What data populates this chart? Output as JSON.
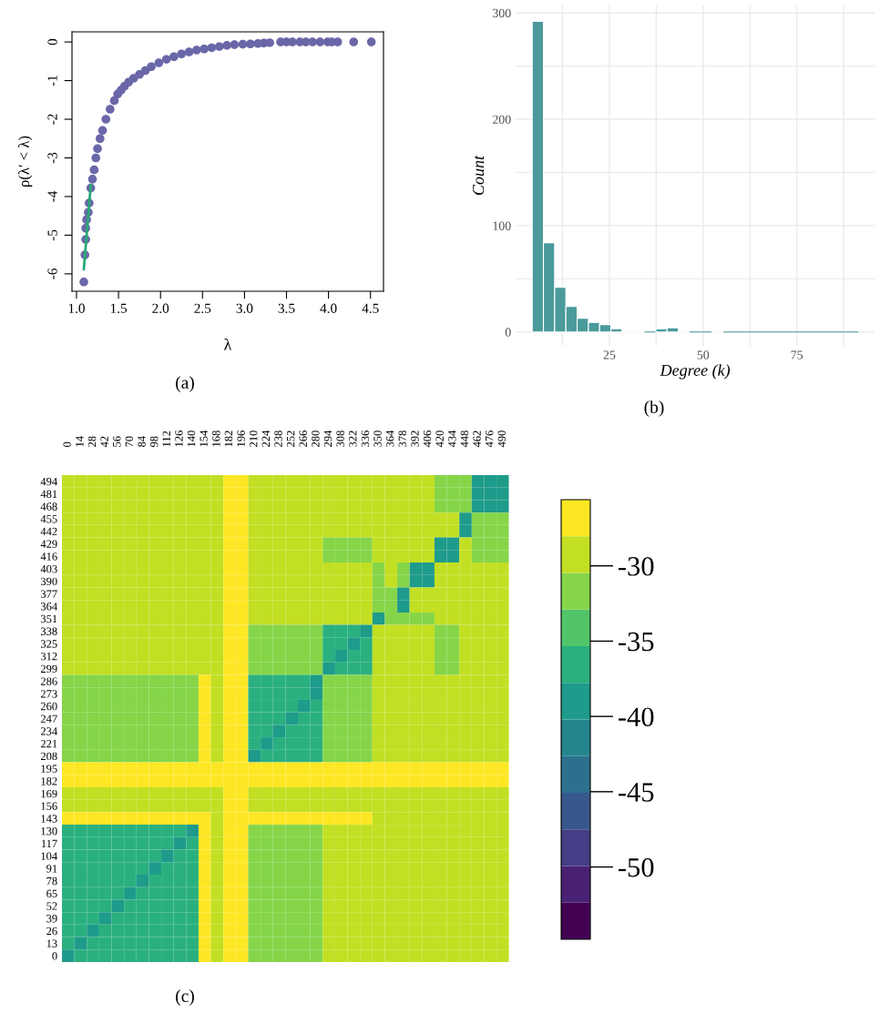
{
  "chart_data": [
    {
      "type": "scatter",
      "xlabel": "λ",
      "ylabel": "ρ(λ′ < λ)",
      "annotations": [
        "(a)"
      ],
      "xlim": [
        0.946,
        4.655
      ],
      "ylim": [
        -6.45,
        0.26
      ],
      "xticks": [
        {
          "value": 1,
          "label": "1.0"
        },
        1.5,
        {
          "value": 2,
          "label": "2.0"
        },
        2.5,
        {
          "value": 3,
          "label": "3.0"
        },
        3.5,
        {
          "value": 4,
          "label": "4.0"
        },
        4.5
      ],
      "yticks": [
        0,
        -1,
        -2,
        -3,
        -4,
        -5,
        -6
      ],
      "grid": false,
      "series": [
        {
          "color": "#6a67a8",
          "marker": "circle",
          "x": [
            1.087,
            1.1,
            1.11,
            1.11,
            1.12,
            1.14,
            1.15,
            1.17,
            1.19,
            1.21,
            1.23,
            1.25,
            1.28,
            1.31,
            1.35,
            1.4,
            1.45,
            1.49,
            1.53,
            1.57,
            1.62,
            1.68,
            1.75,
            1.82,
            1.89,
            1.98,
            2.07,
            2.16,
            2.25,
            2.34,
            2.43,
            2.52,
            2.61,
            2.7,
            2.79,
            2.88,
            2.98,
            3.07,
            3.16,
            3.23,
            3.3,
            3.43,
            3.5,
            3.57,
            3.66,
            3.73,
            3.81,
            3.9,
            3.99,
            4.04,
            4.11,
            4.3,
            4.51
          ],
          "values": [
            -6.21,
            -5.51,
            -5.11,
            -4.82,
            -4.6,
            -4.41,
            -4.17,
            -3.78,
            -3.55,
            -3.31,
            -3.0,
            -2.76,
            -2.5,
            -2.29,
            -2.0,
            -1.74,
            -1.52,
            -1.35,
            -1.25,
            -1.15,
            -1.04,
            -0.94,
            -0.84,
            -0.74,
            -0.64,
            -0.54,
            -0.45,
            -0.38,
            -0.31,
            -0.26,
            -0.21,
            -0.18,
            -0.15,
            -0.12,
            -0.09,
            -0.07,
            -0.06,
            -0.05,
            -0.04,
            -0.03,
            -0.02,
            0,
            0,
            0,
            0,
            0,
            0,
            0,
            0,
            0,
            0,
            0,
            0
          ]
        },
        {
          "type": "line",
          "color": "#2aa876",
          "x": [
            1.087,
            1.17
          ],
          "values": [
            -5.88,
            -3.7
          ]
        }
      ]
    },
    {
      "type": "histogram",
      "xlabel": "Degree (k)",
      "ylabel": "Count",
      "annotations": [
        "(b)"
      ],
      "color": "#4a9a9c",
      "grid": true,
      "bins": [
        4.4,
        7.4,
        10.4,
        13.4,
        16.4,
        19.4,
        22.4,
        25.4,
        28.4,
        31.4,
        34.4,
        37.4,
        40.4,
        43.4,
        46.4,
        49.4,
        52.4,
        55.4,
        58.4,
        61.4,
        64.4,
        67.4,
        70.4,
        73.4,
        76.4,
        79.4,
        82.4,
        85.4,
        88.4,
        91.4
      ],
      "values": [
        292,
        84,
        42,
        24,
        13,
        9,
        7,
        3,
        1,
        1,
        0,
        3,
        4,
        1,
        0,
        0,
        1,
        0,
        0,
        0,
        0,
        0,
        0,
        0,
        0,
        0,
        0,
        0,
        0
      ],
      "xlim": [
        0,
        95.8
      ],
      "ylim": [
        -13,
        307
      ],
      "xticks": [
        {
          "value": 12.5,
          "label": null
        },
        25,
        {
          "value": 37.5,
          "label": null
        },
        50,
        {
          "value": 62.5,
          "label": null
        },
        75,
        {
          "value": 87.5,
          "label": null
        }
      ],
      "yticks": [
        0,
        {
          "value": 50,
          "label": null
        },
        100,
        {
          "value": 150,
          "label": null
        },
        200,
        {
          "value": 250,
          "label": null
        },
        300
      ]
    },
    {
      "type": "heatmap",
      "annotations": [
        "(c)"
      ],
      "clim": [
        -54.8,
        -25.6
      ],
      "cticks": [
        {
          "value": -30,
          "label": "-30"
        },
        {
          "value": -35,
          "label": "-35"
        },
        {
          "value": -40,
          "label": "-40"
        },
        {
          "value": -45,
          "label": "-45"
        },
        {
          "value": -50,
          "label": "-50"
        }
      ],
      "categories": [
        "0",
        "14",
        "28",
        "42",
        "56",
        "70",
        "84",
        "98",
        "112",
        "126",
        "140",
        "154",
        "168",
        "182",
        "196",
        "210",
        "224",
        "238",
        "252",
        "266",
        "280",
        "294",
        "308",
        "322",
        "336",
        "350",
        "364",
        "378",
        "392",
        "406",
        "420",
        "434",
        "448",
        "462",
        "476",
        "490"
      ],
      "y_categories": [
        "494",
        "481",
        "468",
        "455",
        "442",
        "429",
        "416",
        "403",
        "390",
        "377",
        "364",
        "351",
        "338",
        "325",
        "312",
        "299",
        "286",
        "273",
        "260",
        "247",
        "234",
        "221",
        "208",
        "195",
        "182",
        "169",
        "156",
        "143",
        "130",
        "117",
        "104",
        "91",
        "78",
        "65",
        "52",
        "39",
        "26",
        "13",
        "0"
      ],
      "cells": [
        [
          -29,
          -29,
          -29,
          -29,
          -29,
          -29,
          -29,
          -29,
          -29,
          -29,
          -29,
          -29,
          -29,
          -27,
          -27,
          -29,
          -29,
          -29,
          -29,
          -29,
          -29,
          -29,
          -29,
          -29,
          -29,
          -29,
          -29,
          -29,
          -29,
          -29,
          -31.5,
          -31.5,
          -31.5,
          -38.5,
          -38.5,
          -38.5
        ],
        [
          -29,
          -29,
          -29,
          -29,
          -29,
          -29,
          -29,
          -29,
          -29,
          -29,
          -29,
          -29,
          -29,
          -27,
          -27,
          -29,
          -29,
          -29,
          -29,
          -29,
          -29,
          -29,
          -29,
          -29,
          -29,
          -29,
          -29,
          -29,
          -29,
          -29,
          -31.5,
          -31.5,
          -31.5,
          -38.5,
          -38.5,
          -38.5
        ],
        [
          -29,
          -29,
          -29,
          -29,
          -29,
          -29,
          -29,
          -29,
          -29,
          -29,
          -29,
          -29,
          -29,
          -27,
          -27,
          -29,
          -29,
          -29,
          -29,
          -29,
          -29,
          -29,
          -29,
          -29,
          -29,
          -29,
          -29,
          -29,
          -29,
          -29,
          -31.5,
          -31.5,
          -31.5,
          -38.5,
          -38.5,
          -38.5
        ],
        [
          -29,
          -29,
          -29,
          -29,
          -29,
          -29,
          -29,
          -29,
          -29,
          -29,
          -29,
          -29,
          -29,
          -27,
          -27,
          -29,
          -29,
          -29,
          -29,
          -29,
          -29,
          -29,
          -29,
          -29,
          -29,
          -29,
          -29,
          -29,
          -29,
          -29,
          -29,
          -29,
          -38.5,
          -31.5,
          -31.5,
          -31.5
        ],
        [
          -29,
          -29,
          -29,
          -29,
          -29,
          -29,
          -29,
          -29,
          -29,
          -29,
          -29,
          -29,
          -29,
          -27,
          -27,
          -29,
          -29,
          -29,
          -29,
          -29,
          -29,
          -29,
          -29,
          -29,
          -29,
          -29,
          -29,
          -29,
          -29,
          -29,
          -29,
          -29,
          -38.5,
          -31.5,
          -31.5,
          -31.5
        ],
        [
          -29,
          -29,
          -29,
          -29,
          -29,
          -29,
          -29,
          -29,
          -29,
          -29,
          -29,
          -29,
          -29,
          -27,
          -27,
          -29,
          -29,
          -29,
          -29,
          -29,
          -29,
          -31.5,
          -31.5,
          -31.5,
          -31.5,
          -29,
          -29,
          -29,
          -29,
          -29,
          -38.5,
          -38.5,
          -29,
          -31.5,
          -31.5,
          -31.5
        ],
        [
          -29,
          -29,
          -29,
          -29,
          -29,
          -29,
          -29,
          -29,
          -29,
          -29,
          -29,
          -29,
          -29,
          -27,
          -27,
          -29,
          -29,
          -29,
          -29,
          -29,
          -29,
          -31.5,
          -31.5,
          -31.5,
          -31.5,
          -29,
          -29,
          -29,
          -29,
          -29,
          -38.5,
          -38.5,
          -29,
          -31.5,
          -31.5,
          -31.5
        ],
        [
          -29,
          -29,
          -29,
          -29,
          -29,
          -29,
          -29,
          -29,
          -29,
          -29,
          -29,
          -29,
          -29,
          -27,
          -27,
          -29,
          -29,
          -29,
          -29,
          -29,
          -29,
          -29,
          -29,
          -29,
          -29,
          -31.5,
          -29,
          -31.5,
          -38.5,
          -38.5,
          -29,
          -29,
          -29,
          -29,
          -29,
          -29
        ],
        [
          -29,
          -29,
          -29,
          -29,
          -29,
          -29,
          -29,
          -29,
          -29,
          -29,
          -29,
          -29,
          -29,
          -27,
          -27,
          -29,
          -29,
          -29,
          -29,
          -29,
          -29,
          -29,
          -29,
          -29,
          -29,
          -31.5,
          -29,
          -31.5,
          -38.5,
          -38.5,
          -29,
          -29,
          -29,
          -29,
          -29,
          -29
        ],
        [
          -29,
          -29,
          -29,
          -29,
          -29,
          -29,
          -29,
          -29,
          -29,
          -29,
          -29,
          -29,
          -29,
          -27,
          -27,
          -29,
          -29,
          -29,
          -29,
          -29,
          -29,
          -29,
          -29,
          -29,
          -29,
          -31.5,
          -31.5,
          -38.5,
          -29,
          -29,
          -29,
          -29,
          -29,
          -29,
          -29,
          -29
        ],
        [
          -29,
          -29,
          -29,
          -29,
          -29,
          -29,
          -29,
          -29,
          -29,
          -29,
          -29,
          -29,
          -29,
          -27,
          -27,
          -29,
          -29,
          -29,
          -29,
          -29,
          -29,
          -29,
          -29,
          -29,
          -29,
          -31.5,
          -31.5,
          -38.5,
          -29,
          -29,
          -29,
          -29,
          -29,
          -29,
          -29,
          -29
        ],
        [
          -29,
          -29,
          -29,
          -29,
          -29,
          -29,
          -29,
          -29,
          -29,
          -29,
          -29,
          -29,
          -29,
          -27,
          -27,
          -29,
          -29,
          -29,
          -29,
          -29,
          -29,
          -29,
          -29,
          -29,
          -29,
          -38.5,
          -31.5,
          -31.5,
          -31.5,
          -31.5,
          -29,
          -29,
          -29,
          -29,
          -29,
          -29
        ],
        [
          -29,
          -29,
          -29,
          -29,
          -29,
          -29,
          -29,
          -29,
          -29,
          -29,
          -29,
          -29,
          -29,
          -27,
          -27,
          -31.5,
          -31.5,
          -31.5,
          -31.5,
          -31.5,
          -31.5,
          -36.5,
          -36.5,
          -36.5,
          -38.5,
          -29,
          -29,
          -29,
          -29,
          -29,
          -31.5,
          -31.5,
          -29,
          -29,
          -29,
          -29
        ],
        [
          -29,
          -29,
          -29,
          -29,
          -29,
          -29,
          -29,
          -29,
          -29,
          -29,
          -29,
          -29,
          -29,
          -27,
          -27,
          -31.5,
          -31.5,
          -31.5,
          -31.5,
          -31.5,
          -31.5,
          -36.5,
          -36.5,
          -38.5,
          -36.5,
          -29,
          -29,
          -29,
          -29,
          -29,
          -31.5,
          -31.5,
          -29,
          -29,
          -29,
          -29
        ],
        [
          -29,
          -29,
          -29,
          -29,
          -29,
          -29,
          -29,
          -29,
          -29,
          -29,
          -29,
          -29,
          -29,
          -27,
          -27,
          -31.5,
          -31.5,
          -31.5,
          -31.5,
          -31.5,
          -31.5,
          -36.5,
          -38.5,
          -36.5,
          -36.5,
          -29,
          -29,
          -29,
          -29,
          -29,
          -31.5,
          -31.5,
          -29,
          -29,
          -29,
          -29
        ],
        [
          -29,
          -29,
          -29,
          -29,
          -29,
          -29,
          -29,
          -29,
          -29,
          -29,
          -29,
          -29,
          -29,
          -27,
          -27,
          -31.5,
          -31.5,
          -31.5,
          -31.5,
          -31.5,
          -31.5,
          -38.5,
          -36.5,
          -36.5,
          -36.5,
          -29,
          -29,
          -29,
          -29,
          -29,
          -31.5,
          -31.5,
          -29,
          -29,
          -29,
          -29
        ],
        [
          -31.5,
          -31.5,
          -31.5,
          -31.5,
          -31.5,
          -31.5,
          -31.5,
          -31.5,
          -31.5,
          -31.5,
          -31.5,
          -27,
          -29,
          -27,
          -27,
          -36.5,
          -36.5,
          -36.5,
          -36.5,
          -36.5,
          -38.5,
          -31.5,
          -31.5,
          -31.5,
          -31.5,
          -29,
          -29,
          -29,
          -29,
          -29,
          -29,
          -29,
          -29,
          -29,
          -29,
          -29
        ],
        [
          -31.5,
          -31.5,
          -31.5,
          -31.5,
          -31.5,
          -31.5,
          -31.5,
          -31.5,
          -31.5,
          -31.5,
          -31.5,
          -27,
          -29,
          -27,
          -27,
          -36.5,
          -36.5,
          -36.5,
          -36.5,
          -36.5,
          -38.5,
          -31.5,
          -31.5,
          -31.5,
          -31.5,
          -29,
          -29,
          -29,
          -29,
          -29,
          -29,
          -29,
          -29,
          -29,
          -29,
          -29
        ],
        [
          -31.5,
          -31.5,
          -31.5,
          -31.5,
          -31.5,
          -31.5,
          -31.5,
          -31.5,
          -31.5,
          -31.5,
          -31.5,
          -27,
          -29,
          -27,
          -27,
          -36.5,
          -36.5,
          -36.5,
          -36.5,
          -38.5,
          -36.5,
          -31.5,
          -31.5,
          -31.5,
          -31.5,
          -29,
          -29,
          -29,
          -29,
          -29,
          -29,
          -29,
          -29,
          -29,
          -29,
          -29
        ],
        [
          -31.5,
          -31.5,
          -31.5,
          -31.5,
          -31.5,
          -31.5,
          -31.5,
          -31.5,
          -31.5,
          -31.5,
          -31.5,
          -27,
          -29,
          -27,
          -27,
          -36.5,
          -36.5,
          -36.5,
          -38.5,
          -36.5,
          -36.5,
          -31.5,
          -31.5,
          -31.5,
          -31.5,
          -29,
          -29,
          -29,
          -29,
          -29,
          -29,
          -29,
          -29,
          -29,
          -29,
          -29
        ],
        [
          -31.5,
          -31.5,
          -31.5,
          -31.5,
          -31.5,
          -31.5,
          -31.5,
          -31.5,
          -31.5,
          -31.5,
          -31.5,
          -27,
          -29,
          -27,
          -27,
          -36.5,
          -36.5,
          -38.5,
          -36.5,
          -36.5,
          -36.5,
          -31.5,
          -31.5,
          -31.5,
          -31.5,
          -29,
          -29,
          -29,
          -29,
          -29,
          -29,
          -29,
          -29,
          -29,
          -29,
          -29
        ],
        [
          -31.5,
          -31.5,
          -31.5,
          -31.5,
          -31.5,
          -31.5,
          -31.5,
          -31.5,
          -31.5,
          -31.5,
          -31.5,
          -27,
          -29,
          -27,
          -27,
          -36.5,
          -38.5,
          -36.5,
          -36.5,
          -36.5,
          -36.5,
          -31.5,
          -31.5,
          -31.5,
          -31.5,
          -29,
          -29,
          -29,
          -29,
          -29,
          -29,
          -29,
          -29,
          -29,
          -29,
          -29
        ],
        [
          -31.5,
          -31.5,
          -31.5,
          -31.5,
          -31.5,
          -31.5,
          -31.5,
          -31.5,
          -31.5,
          -31.5,
          -31.5,
          -27,
          -29,
          -27,
          -27,
          -38.5,
          -36.5,
          -36.5,
          -36.5,
          -36.5,
          -36.5,
          -31.5,
          -31.5,
          -31.5,
          -31.5,
          -29,
          -29,
          -29,
          -29,
          -29,
          -29,
          -29,
          -29,
          -29,
          -29,
          -29
        ],
        [
          -27,
          -27,
          -27,
          -27,
          -27,
          -27,
          -27,
          -27,
          -27,
          -27,
          -27,
          -27,
          -27,
          -27,
          -27,
          -27,
          -27,
          -27,
          -27,
          -27,
          -27,
          -27,
          -27,
          -27,
          -27,
          -27,
          -27,
          -27,
          -27,
          -27,
          -27,
          -27,
          -27,
          -27,
          -27,
          -27
        ],
        [
          -27,
          -27,
          -27,
          -27,
          -27,
          -27,
          -27,
          -27,
          -27,
          -27,
          -27,
          -27,
          -27,
          -27,
          -27,
          -27,
          -27,
          -27,
          -27,
          -27,
          -27,
          -27,
          -27,
          -27,
          -27,
          -27,
          -27,
          -27,
          -27,
          -27,
          -27,
          -27,
          -27,
          -27,
          -27,
          -27
        ],
        [
          -29,
          -29,
          -29,
          -29,
          -29,
          -29,
          -29,
          -29,
          -29,
          -29,
          -29,
          -29,
          -29,
          -27,
          -27,
          -29,
          -29,
          -29,
          -29,
          -29,
          -29,
          -29,
          -29,
          -29,
          -29,
          -29,
          -29,
          -29,
          -29,
          -29,
          -29,
          -29,
          -29,
          -29,
          -29,
          -29
        ],
        [
          -29,
          -29,
          -29,
          -29,
          -29,
          -29,
          -29,
          -29,
          -29,
          -29,
          -29,
          -29,
          -29,
          -27,
          -27,
          -29,
          -29,
          -29,
          -29,
          -29,
          -29,
          -29,
          -29,
          -29,
          -29,
          -29,
          -29,
          -29,
          -29,
          -29,
          -29,
          -29,
          -29,
          -29,
          -29,
          -29
        ],
        [
          -27,
          -27,
          -27,
          -27,
          -27,
          -27,
          -27,
          -27,
          -27,
          -27,
          -27,
          -27,
          -29,
          -27,
          -27,
          -27,
          -27,
          -27,
          -27,
          -27,
          -27,
          -27,
          -27,
          -27,
          -27,
          -29,
          -29,
          -29,
          -29,
          -29,
          -29,
          -29,
          -29,
          -29,
          -29,
          -29
        ],
        [
          -36.5,
          -36.5,
          -36.5,
          -36.5,
          -36.5,
          -36.5,
          -36.5,
          -36.5,
          -36.5,
          -36.5,
          -38.5,
          -27,
          -29,
          -27,
          -27,
          -31.5,
          -31.5,
          -31.5,
          -31.5,
          -31.5,
          -31.5,
          -29,
          -29,
          -29,
          -29,
          -29,
          -29,
          -29,
          -29,
          -29,
          -29,
          -29,
          -29,
          -29,
          -29,
          -29
        ],
        [
          -36.5,
          -36.5,
          -36.5,
          -36.5,
          -36.5,
          -36.5,
          -36.5,
          -36.5,
          -36.5,
          -38.5,
          -36.5,
          -27,
          -29,
          -27,
          -27,
          -31.5,
          -31.5,
          -31.5,
          -31.5,
          -31.5,
          -31.5,
          -29,
          -29,
          -29,
          -29,
          -29,
          -29,
          -29,
          -29,
          -29,
          -29,
          -29,
          -29,
          -29,
          -29,
          -29
        ],
        [
          -36.5,
          -36.5,
          -36.5,
          -36.5,
          -36.5,
          -36.5,
          -36.5,
          -36.5,
          -38.5,
          -36.5,
          -36.5,
          -27,
          -29,
          -27,
          -27,
          -31.5,
          -31.5,
          -31.5,
          -31.5,
          -31.5,
          -31.5,
          -29,
          -29,
          -29,
          -29,
          -29,
          -29,
          -29,
          -29,
          -29,
          -29,
          -29,
          -29,
          -29,
          -29,
          -29
        ],
        [
          -36.5,
          -36.5,
          -36.5,
          -36.5,
          -36.5,
          -36.5,
          -36.5,
          -38.5,
          -36.5,
          -36.5,
          -36.5,
          -27,
          -29,
          -27,
          -27,
          -31.5,
          -31.5,
          -31.5,
          -31.5,
          -31.5,
          -31.5,
          -29,
          -29,
          -29,
          -29,
          -29,
          -29,
          -29,
          -29,
          -29,
          -29,
          -29,
          -29,
          -29,
          -29,
          -29
        ],
        [
          -36.5,
          -36.5,
          -36.5,
          -36.5,
          -36.5,
          -36.5,
          -38.5,
          -36.5,
          -36.5,
          -36.5,
          -36.5,
          -27,
          -29,
          -27,
          -27,
          -31.5,
          -31.5,
          -31.5,
          -31.5,
          -31.5,
          -31.5,
          -29,
          -29,
          -29,
          -29,
          -29,
          -29,
          -29,
          -29,
          -29,
          -29,
          -29,
          -29,
          -29,
          -29,
          -29
        ],
        [
          -36.5,
          -36.5,
          -36.5,
          -36.5,
          -36.5,
          -38.5,
          -36.5,
          -36.5,
          -36.5,
          -36.5,
          -36.5,
          -27,
          -29,
          -27,
          -27,
          -31.5,
          -31.5,
          -31.5,
          -31.5,
          -31.5,
          -31.5,
          -29,
          -29,
          -29,
          -29,
          -29,
          -29,
          -29,
          -29,
          -29,
          -29,
          -29,
          -29,
          -29,
          -29,
          -29
        ],
        [
          -36.5,
          -36.5,
          -36.5,
          -36.5,
          -38.5,
          -36.5,
          -36.5,
          -36.5,
          -36.5,
          -36.5,
          -36.5,
          -27,
          -29,
          -27,
          -27,
          -31.5,
          -31.5,
          -31.5,
          -31.5,
          -31.5,
          -31.5,
          -29,
          -29,
          -29,
          -29,
          -29,
          -29,
          -29,
          -29,
          -29,
          -29,
          -29,
          -29,
          -29,
          -29,
          -29
        ],
        [
          -36.5,
          -36.5,
          -36.5,
          -38.5,
          -36.5,
          -36.5,
          -36.5,
          -36.5,
          -36.5,
          -36.5,
          -36.5,
          -27,
          -29,
          -27,
          -27,
          -31.5,
          -31.5,
          -31.5,
          -31.5,
          -31.5,
          -31.5,
          -29,
          -29,
          -29,
          -29,
          -29,
          -29,
          -29,
          -29,
          -29,
          -29,
          -29,
          -29,
          -29,
          -29,
          -29
        ],
        [
          -36.5,
          -36.5,
          -38.5,
          -36.5,
          -36.5,
          -36.5,
          -36.5,
          -36.5,
          -36.5,
          -36.5,
          -36.5,
          -27,
          -29,
          -27,
          -27,
          -31.5,
          -31.5,
          -31.5,
          -31.5,
          -31.5,
          -31.5,
          -29,
          -29,
          -29,
          -29,
          -29,
          -29,
          -29,
          -29,
          -29,
          -29,
          -29,
          -29,
          -29,
          -29,
          -29
        ],
        [
          -36.5,
          -38.5,
          -36.5,
          -36.5,
          -36.5,
          -36.5,
          -36.5,
          -36.5,
          -36.5,
          -36.5,
          -36.5,
          -27,
          -29,
          -27,
          -27,
          -31.5,
          -31.5,
          -31.5,
          -31.5,
          -31.5,
          -31.5,
          -29,
          -29,
          -29,
          -29,
          -29,
          -29,
          -29,
          -29,
          -29,
          -29,
          -29,
          -29,
          -29,
          -29,
          -29
        ],
        [
          -38.5,
          -36.5,
          -36.5,
          -36.5,
          -36.5,
          -36.5,
          -36.5,
          -36.5,
          -36.5,
          -36.5,
          -36.5,
          -27,
          -29,
          -27,
          -27,
          -31.5,
          -31.5,
          -31.5,
          -31.5,
          -31.5,
          -31.5,
          -29,
          -29,
          -29,
          -29,
          -29,
          -29,
          -29,
          -29,
          -29,
          -29,
          -29,
          -29,
          -29,
          -29,
          -29
        ]
      ]
    }
  ]
}
